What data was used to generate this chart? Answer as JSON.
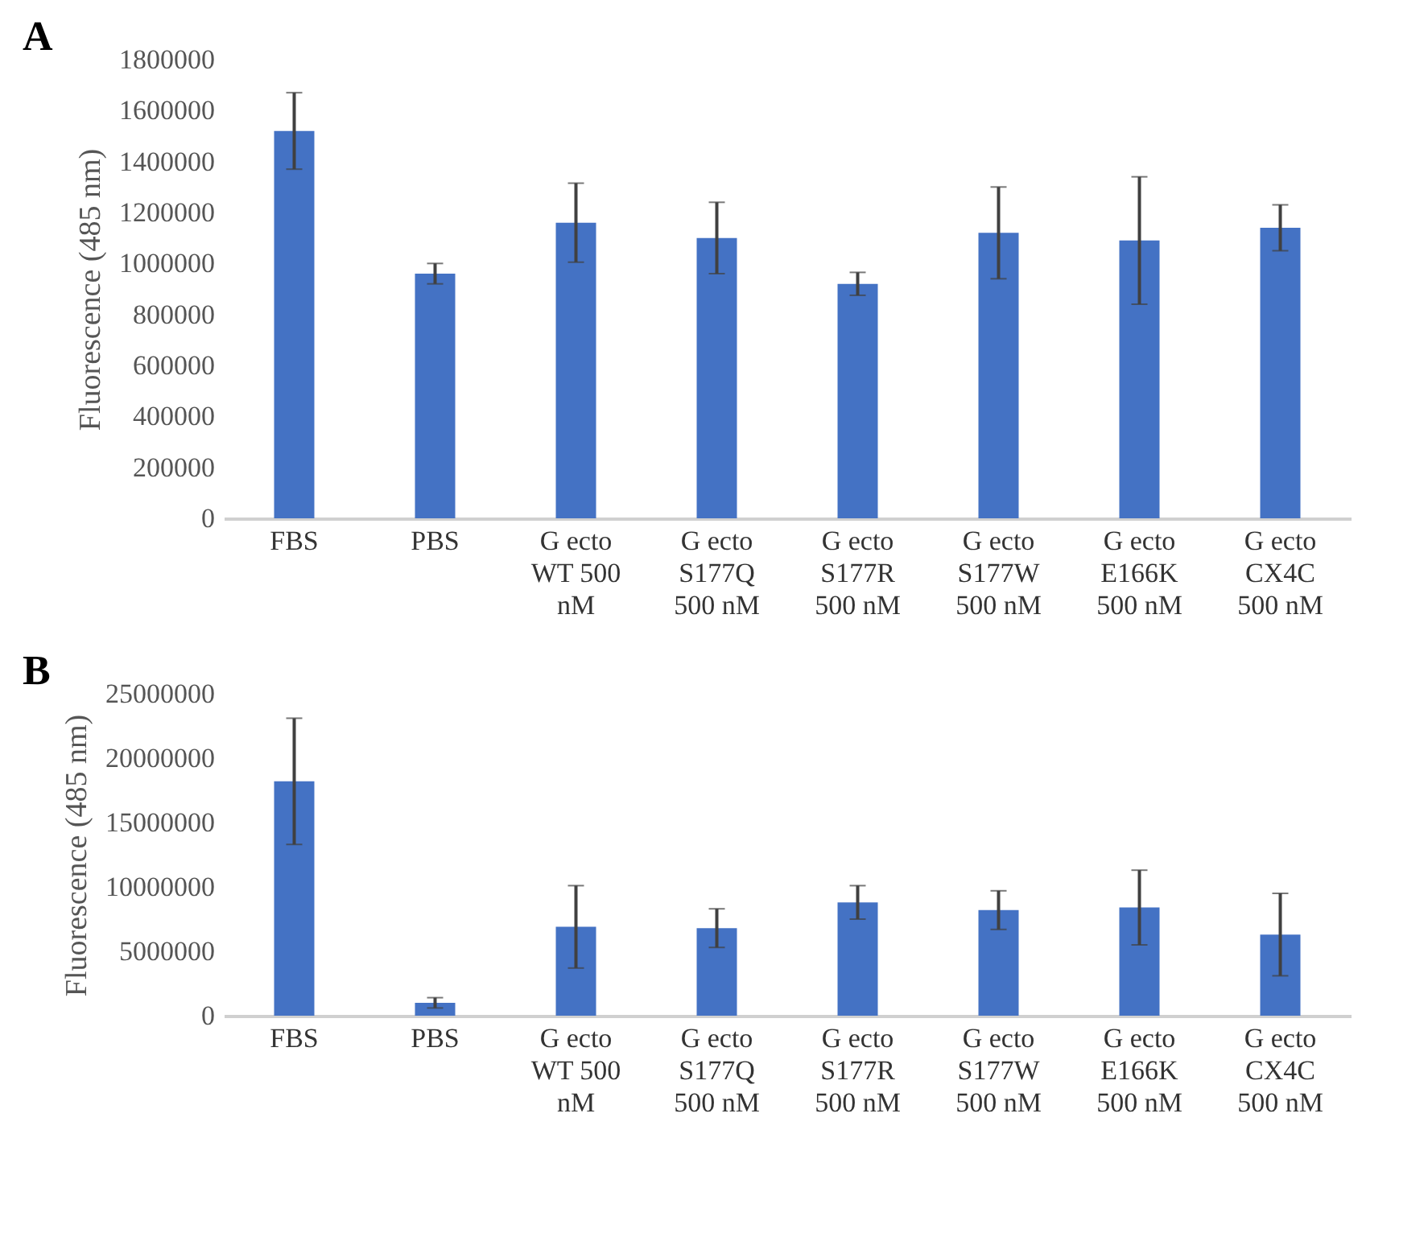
{
  "chart_data": [
    {
      "type": "bar",
      "title": "A",
      "ylabel": "Fluorescence (485 nm)",
      "categories": [
        "FBS",
        "PBS",
        "G ecto WT 500 nM",
        "G ecto S177Q 500 nM",
        "G ecto S177R 500 nM",
        "G ecto S177W 500 nM",
        "G ecto E166K 500 nM",
        "G ecto CX4C 500 nM"
      ],
      "values": [
        1520000,
        960000,
        1160000,
        1100000,
        920000,
        1120000,
        1090000,
        1140000
      ],
      "errors": [
        150000,
        40000,
        155000,
        140000,
        45000,
        180000,
        250000,
        90000
      ],
      "color": "#4472c4",
      "ylim": [
        0,
        1800000
      ],
      "yticks": [
        0,
        200000,
        400000,
        600000,
        800000,
        1000000,
        1200000,
        1400000,
        1600000,
        1800000
      ]
    },
    {
      "type": "bar",
      "title": "B",
      "ylabel": "Fluorescence (485 nm)",
      "categories": [
        "FBS",
        "PBS",
        "G ecto WT 500 nM",
        "G ecto S177Q 500 nM",
        "G ecto S177R 500 nM",
        "G ecto S177W 500 nM",
        "G ecto E166K 500 nM",
        "G ecto CX4C 500 nM"
      ],
      "values": [
        18200000,
        1000000,
        6900000,
        6800000,
        8800000,
        8200000,
        8400000,
        6300000
      ],
      "errors": [
        4900000,
        400000,
        3200000,
        1500000,
        1300000,
        1500000,
        2900000,
        3200000
      ],
      "color": "#4472c4",
      "ylim": [
        0,
        25000000
      ],
      "yticks": [
        0,
        5000000,
        10000000,
        15000000,
        20000000,
        25000000
      ]
    }
  ]
}
